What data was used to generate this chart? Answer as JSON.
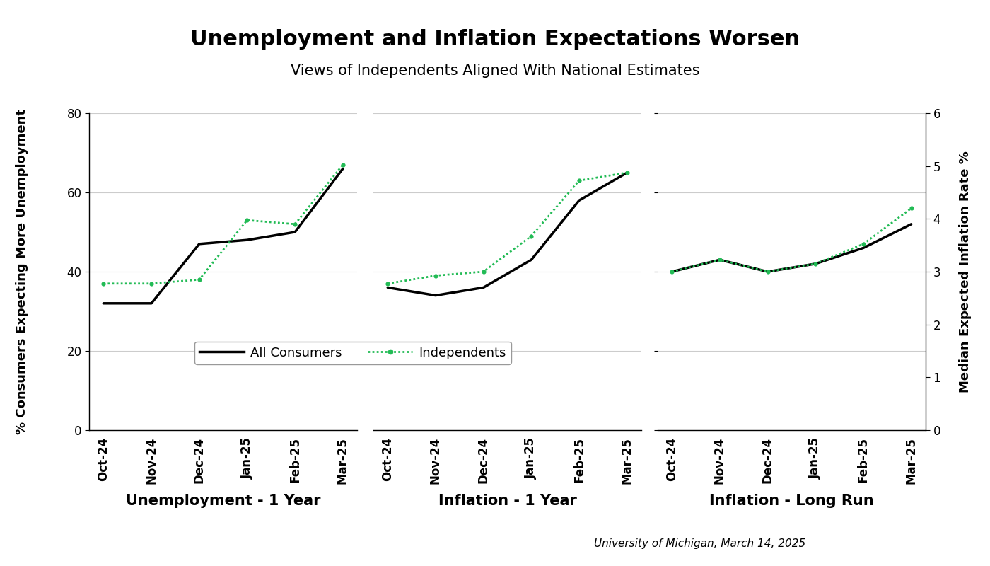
{
  "title": "Unemployment and Inflation Expectations Worsen",
  "subtitle": "Views of Independents Aligned With National Estimates",
  "source": "University of Michigan, March 14, 2025",
  "ylabel_left": "% Consumers Expecting More Unemployment",
  "ylabel_right": "Median Expected Inflation Rate %",
  "x_labels": [
    "Oct-24",
    "Nov-24",
    "Dec-24",
    "Jan-25",
    "Feb-25",
    "Mar-25"
  ],
  "panels": [
    {
      "title": "Unemployment - 1 Year",
      "all_consumers": [
        32,
        32,
        47,
        48,
        50,
        66
      ],
      "independents": [
        37,
        37,
        38,
        53,
        52,
        67
      ]
    },
    {
      "title": "Inflation - 1 Year",
      "all_consumers": [
        36,
        34,
        36,
        43,
        58,
        65
      ],
      "independents": [
        37,
        39,
        40,
        49,
        63,
        65
      ]
    },
    {
      "title": "Inflation - Long Run",
      "all_consumers": [
        40,
        43,
        40,
        42,
        46,
        52
      ],
      "independents": [
        40,
        43,
        40,
        42,
        47,
        56
      ]
    }
  ],
  "ylim": [
    0,
    80
  ],
  "yticks_left": [
    0,
    20,
    40,
    60,
    80
  ],
  "ylim_right": [
    0,
    6
  ],
  "yticks_right": [
    0,
    1,
    2,
    3,
    4,
    5,
    6
  ],
  "all_color": "#000000",
  "ind_color": "#22bb55",
  "background_color": "#ffffff",
  "title_fontsize": 22,
  "subtitle_fontsize": 15,
  "panel_label_fontsize": 15,
  "axis_label_fontsize": 13,
  "tick_fontsize": 12,
  "source_fontsize": 11,
  "grid_color": "#cccccc"
}
